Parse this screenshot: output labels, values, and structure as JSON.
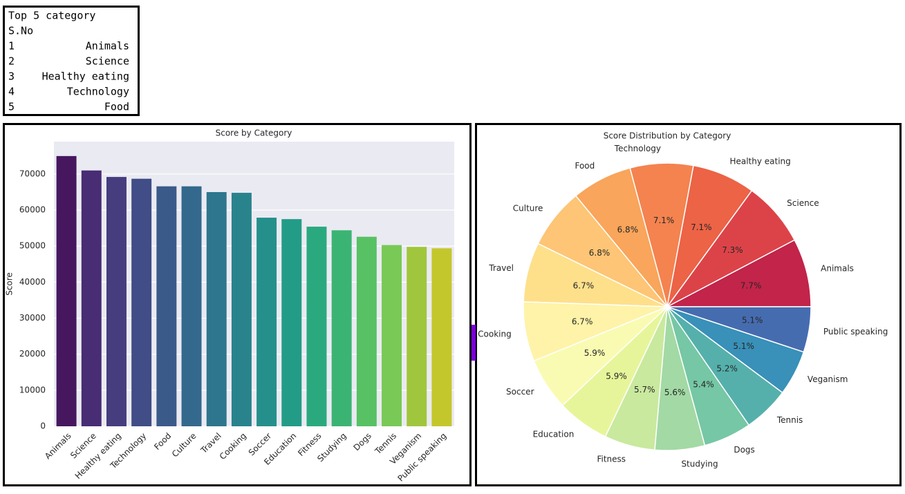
{
  "table": {
    "title": "Top 5 category",
    "header": "S.No",
    "rows": [
      [
        "1",
        "Animals"
      ],
      [
        "2",
        "Science"
      ],
      [
        "3",
        "Healthy eating"
      ],
      [
        "4",
        "Technology"
      ],
      [
        "5",
        "Food"
      ]
    ]
  },
  "chart_data": [
    {
      "type": "bar",
      "title": "Score by Category",
      "y_label": "Score",
      "categories": [
        "Animals",
        "Science",
        "Healthy eating",
        "Technology",
        "Food",
        "Culture",
        "Travel",
        "Cooking",
        "Soccer",
        "Education",
        "Fitness",
        "Studying",
        "Dogs",
        "Tennis",
        "Veganism",
        "Public speaking"
      ],
      "values": [
        75000,
        71000,
        69200,
        68700,
        66600,
        66600,
        65000,
        64800,
        57900,
        57500,
        55400,
        54400,
        52600,
        50300,
        49800,
        49400
      ],
      "colors": [
        "#46175e",
        "#482c74",
        "#453d7e",
        "#404d86",
        "#3a5a8a",
        "#33698c",
        "#2d768d",
        "#29838d",
        "#25908b",
        "#229c87",
        "#2aa97f",
        "#3bb473",
        "#57c164",
        "#79c956",
        "#a0c63e",
        "#c4c72c"
      ],
      "ylim": [
        0,
        79000
      ],
      "yticks": [
        0,
        10000,
        20000,
        30000,
        40000,
        50000,
        60000,
        70000
      ],
      "grid": true
    },
    {
      "type": "pie",
      "title": "Score Distribution by Category",
      "categories": [
        "Animals",
        "Science",
        "Healthy eating",
        "Technology",
        "Food",
        "Culture",
        "Travel",
        "Cooking",
        "Soccer",
        "Education",
        "Fitness",
        "Studying",
        "Dogs",
        "Tennis",
        "Veganism",
        "Public speaking"
      ],
      "values": [
        7.7,
        7.3,
        7.1,
        7.1,
        6.8,
        6.8,
        6.7,
        6.7,
        5.9,
        5.9,
        5.7,
        5.6,
        5.4,
        5.2,
        5.1,
        5.1
      ],
      "value_labels": [
        "7.7%",
        "7.3%",
        "7.1%",
        "7.1%",
        "6.8%",
        "6.8%",
        "6.7%",
        "6.7%",
        "5.9%",
        "5.9%",
        "5.7%",
        "5.6%",
        "5.4%",
        "5.2%",
        "5.1%",
        "5.1%"
      ],
      "colors": [
        "#c2244a",
        "#dc4349",
        "#ec6346",
        "#f4834f",
        "#f9a55b",
        "#fdc575",
        "#fee08b",
        "#fef3a8",
        "#f9fbb2",
        "#e7f59a",
        "#c9e99e",
        "#a2d9a4",
        "#76c7a5",
        "#55b0ac",
        "#3990b8",
        "#466cb0"
      ]
    }
  ]
}
